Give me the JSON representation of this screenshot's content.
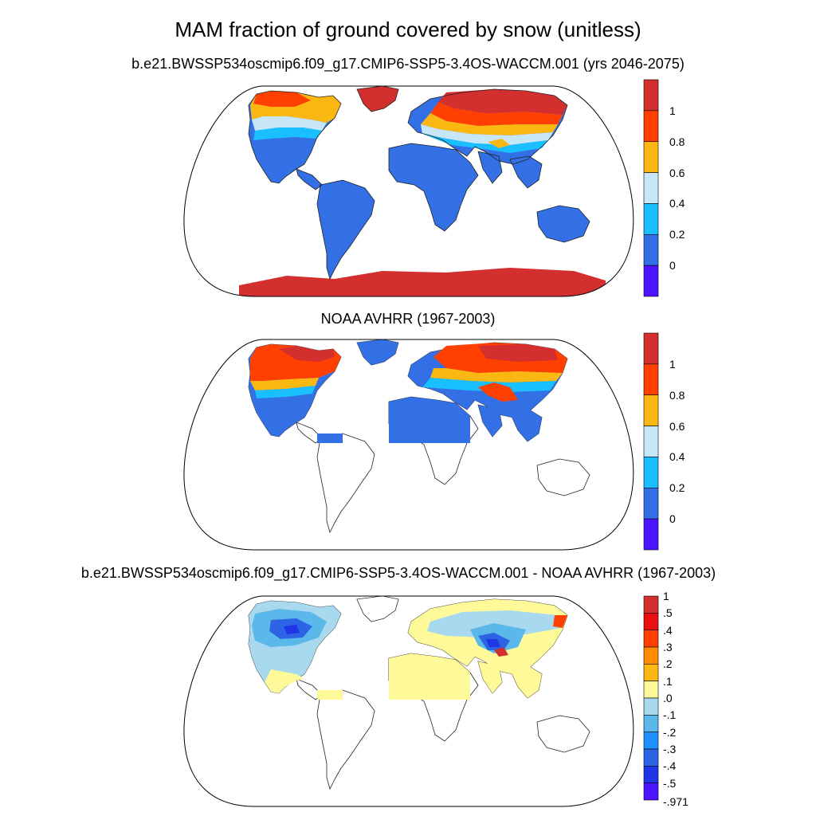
{
  "title": "MAM fraction of ground covered by snow (unitless)",
  "panels": [
    {
      "id": "model",
      "subtitle": "b.e21.BWSSP534oscmip6.f09_g17.CMIP6-SSP5-3.4OS-WACCM.001 (yrs 2046-2075)",
      "colorbar": {
        "labels": [
          "1",
          "0.8",
          "0.6",
          "0.4",
          "0.2",
          "0"
        ],
        "colors": [
          "#d42f2f",
          "#ff4000",
          "#fcb812",
          "#c7e6f7",
          "#19bfff",
          "#3370e6",
          "#4d14ff"
        ]
      }
    },
    {
      "id": "obs",
      "subtitle": "NOAA AVHRR (1967-2003)",
      "colorbar": {
        "labels": [
          "1",
          "0.8",
          "0.6",
          "0.4",
          "0.2",
          "0"
        ],
        "colors": [
          "#d42f2f",
          "#ff4000",
          "#fcb812",
          "#c7e6f7",
          "#19bfff",
          "#3370e6",
          "#4d14ff"
        ]
      }
    },
    {
      "id": "diff",
      "subtitle": "b.e21.BWSSP534oscmip6.f09_g17.CMIP6-SSP5-3.4OS-WACCM.001 - NOAA AVHRR (1967-2003)",
      "colorbar": {
        "labels": [
          "1",
          ".5",
          ".4",
          ".3",
          ".2",
          ".1",
          ".0",
          "-.1",
          "-.2",
          "-.3",
          "-.4",
          "-.5",
          "-.971"
        ],
        "colors": [
          "#d42f2f",
          "#e81010",
          "#ff4000",
          "#ff8c00",
          "#fcb812",
          "#fffa99",
          "#a8d9ee",
          "#5ab9ea",
          "#1f90ff",
          "#2d64e6",
          "#1f35e6",
          "#4d14ff"
        ]
      }
    }
  ]
}
